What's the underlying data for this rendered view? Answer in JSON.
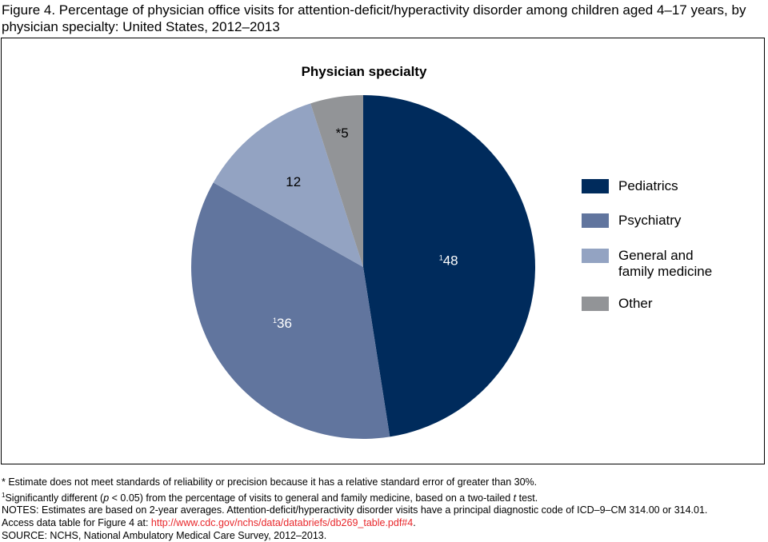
{
  "title": "Figure 4. Percentage of physician office visits for attention-deficit/hyperactivity disorder among children aged 4–17 years, by physician specialty: United States, 2012–2013",
  "chart_data": {
    "type": "pie",
    "title": "Physician specialty",
    "start": "top",
    "direction": "clockwise",
    "legend_position": "right",
    "slices": [
      {
        "name": "Pediatrics",
        "value": 48,
        "label": "48",
        "marker": "1",
        "color": "#002B5C",
        "label_color": "#ffffff"
      },
      {
        "name": "Psychiatry",
        "value": 36,
        "label": "36",
        "marker": "1",
        "color": "#61759E",
        "label_color": "#ffffff"
      },
      {
        "name": "General and family medicine",
        "value": 12,
        "label": "12",
        "marker": "",
        "color": "#93A3C2",
        "label_color": "#000000"
      },
      {
        "name": "Other",
        "value": 5,
        "label": "5",
        "marker": "*",
        "color": "#929497",
        "label_color": "#000000"
      }
    ]
  },
  "legend": {
    "pediatrics": "Pediatrics",
    "psychiatry": "Psychiatry",
    "general": "General and family medicine",
    "other": "Other"
  },
  "notes": {
    "estimate": "* Estimate does not meet standards of reliability or precision because it has a relative standard error of greater than 30%.",
    "sig_marker": "1",
    "sig_a": "Significantly different (",
    "sig_p": "p",
    "sig_b": " < 0.05) from the percentage of visits to general and family medicine, based on a two-tailed ",
    "sig_t": "t",
    "sig_c": " test.",
    "notes": "NOTES: Estimates are based on 2-year averages. Attention-deficit/hyperactivity disorder visits have a principal diagnostic code of ICD–9–CM 314.00 or 314.01.",
    "access": "Access data table for Figure 4 at: ",
    "link": "http://www.cdc.gov/nchs/data/databriefs/db269_table.pdf#4",
    "access_end": ".",
    "source": "SOURCE: NCHS, National Ambulatory Medical Care Survey, 2012–2013."
  }
}
